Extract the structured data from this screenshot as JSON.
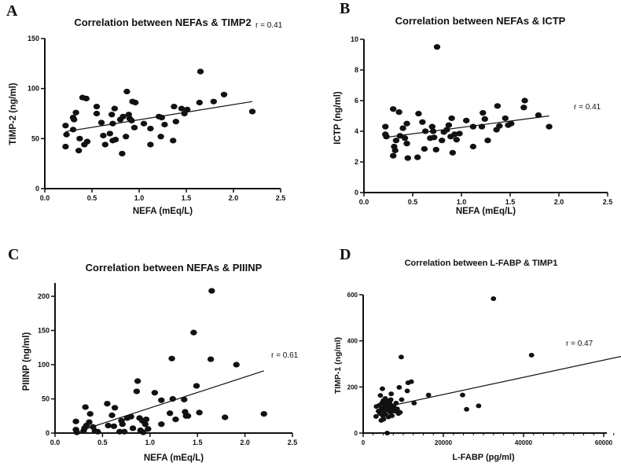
{
  "chart_data": [
    {
      "panel": "A",
      "type": "scatter",
      "title": "Correlation between NEFAs & TIMP2",
      "xlabel": "NEFA (mEq/L)",
      "ylabel": "TIMP-2 (ng/ml)",
      "xlim": [
        0,
        2.5
      ],
      "ylim": [
        0,
        150
      ],
      "xticks": [
        "0.0",
        "0.5",
        "1.0",
        "1.5",
        "2.0",
        "2.5"
      ],
      "xtick_values": [
        0,
        0.5,
        1,
        1.5,
        2,
        2.5
      ],
      "yticks": [
        "0",
        "50",
        "100",
        "150"
      ],
      "ytick_values": [
        0,
        50,
        100,
        150
      ],
      "annotation": "r = 0.41",
      "fit": [
        [
          0.22,
          57
        ],
        [
          2.2,
          87
        ]
      ],
      "points": [
        [
          0.22,
          63
        ],
        [
          0.22,
          42
        ],
        [
          0.23,
          54
        ],
        [
          0.3,
          59
        ],
        [
          0.3,
          71
        ],
        [
          0.31,
          69
        ],
        [
          0.33,
          76
        ],
        [
          0.36,
          38
        ],
        [
          0.37,
          50
        ],
        [
          0.4,
          91
        ],
        [
          0.42,
          44
        ],
        [
          0.44,
          90
        ],
        [
          0.45,
          47
        ],
        [
          0.55,
          82
        ],
        [
          0.55,
          75
        ],
        [
          0.6,
          66
        ],
        [
          0.62,
          53
        ],
        [
          0.64,
          44
        ],
        [
          0.69,
          55
        ],
        [
          0.71,
          74
        ],
        [
          0.72,
          65
        ],
        [
          0.72,
          48
        ],
        [
          0.74,
          80
        ],
        [
          0.75,
          49
        ],
        [
          0.8,
          69
        ],
        [
          0.82,
          35
        ],
        [
          0.83,
          72
        ],
        [
          0.86,
          52
        ],
        [
          0.87,
          97
        ],
        [
          0.89,
          74
        ],
        [
          0.9,
          70
        ],
        [
          0.92,
          68
        ],
        [
          0.93,
          87
        ],
        [
          0.95,
          61
        ],
        [
          0.96,
          86
        ],
        [
          1.05,
          65
        ],
        [
          1.12,
          60
        ],
        [
          1.12,
          44
        ],
        [
          1.21,
          72
        ],
        [
          1.23,
          52
        ],
        [
          1.24,
          71
        ],
        [
          1.27,
          64
        ],
        [
          1.36,
          48
        ],
        [
          1.37,
          82
        ],
        [
          1.39,
          67
        ],
        [
          1.45,
          80
        ],
        [
          1.48,
          75
        ],
        [
          1.51,
          79
        ],
        [
          1.64,
          86
        ],
        [
          1.65,
          117
        ],
        [
          1.79,
          87
        ],
        [
          1.9,
          94
        ],
        [
          2.2,
          77
        ]
      ]
    },
    {
      "panel": "B",
      "type": "scatter",
      "title": "Correlation between NEFAs & ICTP",
      "xlabel": "NEFA (mEq/L)",
      "ylabel": "ICTP (ng/ml)",
      "xlim": [
        0,
        2.5
      ],
      "ylim": [
        0,
        10
      ],
      "xticks": [
        "0.0",
        "0.5",
        "1.0",
        "1.5",
        "2.0",
        "2.5"
      ],
      "xtick_values": [
        0,
        0.5,
        1,
        1.5,
        2,
        2.5
      ],
      "yticks": [
        "0",
        "2",
        "4",
        "6",
        "8",
        "10"
      ],
      "ytick_values": [
        0,
        2,
        4,
        6,
        8,
        10
      ],
      "annotation": "r = 0.41",
      "fit": [
        [
          0.22,
          3.6
        ],
        [
          1.9,
          5.0
        ]
      ],
      "points": [
        [
          0.22,
          4.3
        ],
        [
          0.22,
          3.8
        ],
        [
          0.23,
          3.65
        ],
        [
          0.3,
          2.4
        ],
        [
          0.3,
          5.45
        ],
        [
          0.31,
          3.0
        ],
        [
          0.32,
          2.75
        ],
        [
          0.33,
          3.4
        ],
        [
          0.36,
          5.25
        ],
        [
          0.37,
          3.7
        ],
        [
          0.4,
          4.2
        ],
        [
          0.42,
          3.55
        ],
        [
          0.44,
          4.5
        ],
        [
          0.44,
          3.2
        ],
        [
          0.45,
          2.25
        ],
        [
          0.55,
          2.3
        ],
        [
          0.56,
          5.15
        ],
        [
          0.6,
          4.6
        ],
        [
          0.62,
          2.85
        ],
        [
          0.63,
          4.0
        ],
        [
          0.68,
          3.55
        ],
        [
          0.7,
          4.3
        ],
        [
          0.71,
          4.0
        ],
        [
          0.72,
          3.6
        ],
        [
          0.74,
          2.8
        ],
        [
          0.75,
          9.5
        ],
        [
          0.8,
          3.4
        ],
        [
          0.82,
          3.95
        ],
        [
          0.85,
          4.1
        ],
        [
          0.87,
          4.4
        ],
        [
          0.89,
          3.65
        ],
        [
          0.9,
          4.85
        ],
        [
          0.91,
          2.6
        ],
        [
          0.93,
          3.8
        ],
        [
          0.95,
          3.45
        ],
        [
          0.98,
          3.85
        ],
        [
          1.05,
          4.7
        ],
        [
          1.12,
          3.0
        ],
        [
          1.12,
          4.3
        ],
        [
          1.21,
          4.3
        ],
        [
          1.22,
          5.2
        ],
        [
          1.24,
          4.8
        ],
        [
          1.27,
          3.4
        ],
        [
          1.36,
          4.1
        ],
        [
          1.37,
          5.65
        ],
        [
          1.39,
          4.35
        ],
        [
          1.45,
          4.85
        ],
        [
          1.48,
          4.4
        ],
        [
          1.51,
          4.5
        ],
        [
          1.64,
          5.55
        ],
        [
          1.65,
          6.0
        ],
        [
          1.79,
          5.05
        ],
        [
          1.9,
          4.3
        ]
      ]
    },
    {
      "panel": "C",
      "type": "scatter",
      "title": "Correlation between NEFAs & PIIINP",
      "xlabel": "NEFA (mEq/L)",
      "ylabel": "PIIINP (ng/ml)",
      "xlim": [
        0,
        2.5
      ],
      "ylim": [
        0,
        220
      ],
      "xticks": [
        "0.0",
        "0.5",
        "1.0",
        "1.5",
        "2.0",
        "2.5"
      ],
      "xtick_values": [
        0,
        0.5,
        1,
        1.5,
        2,
        2.5
      ],
      "yticks": [
        "0",
        "50",
        "100",
        "150",
        "200"
      ],
      "ytick_values": [
        0,
        50,
        100,
        150,
        200
      ],
      "annotation": "r = 0.61",
      "fit": [
        [
          0.3,
          5
        ],
        [
          2.2,
          91
        ]
      ],
      "points": [
        [
          0.22,
          17
        ],
        [
          0.22,
          5
        ],
        [
          0.23,
          1
        ],
        [
          0.3,
          3
        ],
        [
          0.31,
          7
        ],
        [
          0.32,
          38
        ],
        [
          0.33,
          11
        ],
        [
          0.36,
          16
        ],
        [
          0.37,
          28
        ],
        [
          0.4,
          9
        ],
        [
          0.42,
          3
        ],
        [
          0.45,
          2
        ],
        [
          0.55,
          43
        ],
        [
          0.56,
          11
        ],
        [
          0.6,
          26
        ],
        [
          0.62,
          10
        ],
        [
          0.63,
          37
        ],
        [
          0.68,
          2
        ],
        [
          0.7,
          18
        ],
        [
          0.71,
          13
        ],
        [
          0.73,
          2
        ],
        [
          0.76,
          22
        ],
        [
          0.8,
          24
        ],
        [
          0.82,
          7
        ],
        [
          0.86,
          61
        ],
        [
          0.87,
          76
        ],
        [
          0.89,
          22
        ],
        [
          0.9,
          4
        ],
        [
          0.92,
          18
        ],
        [
          0.93,
          1
        ],
        [
          0.95,
          13
        ],
        [
          0.96,
          20
        ],
        [
          0.98,
          6
        ],
        [
          1.05,
          59
        ],
        [
          1.12,
          48
        ],
        [
          1.12,
          13
        ],
        [
          1.21,
          29
        ],
        [
          1.23,
          109
        ],
        [
          1.24,
          50
        ],
        [
          1.27,
          20
        ],
        [
          1.36,
          49
        ],
        [
          1.37,
          31
        ],
        [
          1.38,
          25
        ],
        [
          1.4,
          25
        ],
        [
          1.46,
          147
        ],
        [
          1.49,
          69
        ],
        [
          1.52,
          30
        ],
        [
          1.64,
          108
        ],
        [
          1.65,
          208
        ],
        [
          1.79,
          23
        ],
        [
          1.91,
          100
        ],
        [
          2.2,
          28
        ]
      ]
    },
    {
      "panel": "D",
      "type": "scatter",
      "title": "Correlation between L-FABP & TIMP1",
      "xlabel": "L-FABP (pg/ml)",
      "ylabel": "TIMP-1 (ng/ml)",
      "xlim": [
        0,
        65000
      ],
      "ylim": [
        0,
        600
      ],
      "xticks": [
        "0",
        "20000",
        "40000",
        "60000"
      ],
      "xtick_values": [
        0,
        20000,
        40000,
        60000
      ],
      "yticks": [
        "0",
        "200",
        "400",
        "600"
      ],
      "ytick_values": [
        0,
        200,
        400,
        600
      ],
      "annotation": "r = 0.47",
      "fit": [
        [
          6800,
          118
        ],
        [
          65000,
          335
        ]
      ],
      "points": [
        [
          9500,
          330
        ],
        [
          32500,
          583
        ],
        [
          42000,
          338
        ],
        [
          65000,
          145
        ],
        [
          24800,
          165
        ],
        [
          25800,
          103
        ],
        [
          28800,
          118
        ],
        [
          16300,
          165
        ],
        [
          12700,
          130
        ],
        [
          11000,
          183
        ],
        [
          11200,
          218
        ],
        [
          12000,
          223
        ],
        [
          9000,
          198
        ],
        [
          9600,
          145
        ],
        [
          7000,
          170
        ],
        [
          4800,
          192
        ],
        [
          4300,
          163
        ],
        [
          6000,
          0
        ],
        [
          3200,
          72
        ],
        [
          3300,
          115
        ],
        [
          3800,
          95
        ],
        [
          4000,
          120
        ],
        [
          4200,
          85
        ],
        [
          4500,
          55
        ],
        [
          4600,
          105
        ],
        [
          4700,
          130
        ],
        [
          4900,
          75
        ],
        [
          5000,
          140
        ],
        [
          5200,
          95
        ],
        [
          5300,
          115
        ],
        [
          5500,
          150
        ],
        [
          5600,
          80
        ],
        [
          5800,
          125
        ],
        [
          6000,
          100
        ],
        [
          6100,
          140
        ],
        [
          6300,
          70
        ],
        [
          6500,
          110
        ],
        [
          6600,
          130
        ],
        [
          6800,
          90
        ],
        [
          7000,
          120
        ],
        [
          7200,
          75
        ],
        [
          7400,
          100
        ],
        [
          7600,
          115
        ],
        [
          7900,
          95
        ],
        [
          8200,
          130
        ],
        [
          8500,
          105
        ],
        [
          8800,
          85
        ],
        [
          9200,
          90
        ],
        [
          5100,
          60
        ],
        [
          5700,
          110
        ],
        [
          4400,
          100
        ],
        [
          6900,
          145
        ]
      ]
    }
  ]
}
